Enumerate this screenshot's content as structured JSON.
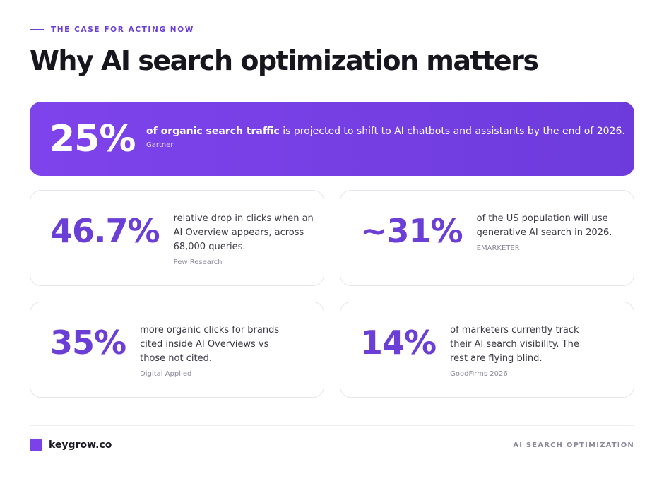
{
  "eyebrow": "THE CASE FOR ACTING NOW",
  "title": "Why AI search optimization matters",
  "hero": {
    "stat": "25%",
    "text_bold": "of organic search traffic",
    "text": " is projected to shift to AI chatbots and assistants by the end of 2026.",
    "source": "Gartner"
  },
  "cards": [
    {
      "stat": "46.7%",
      "text": "relative drop in clicks when an AI Overview appears, across 68,000 queries.",
      "source": "Pew Research"
    },
    {
      "stat": "~31%",
      "text": "of the US population will use generative AI search in 2026.",
      "source": "EMARKETER"
    },
    {
      "stat": "35%",
      "text": "more organic clicks for brands cited inside AI Overviews vs those not cited.",
      "source": "Digital Applied"
    },
    {
      "stat": "14%",
      "text": "of marketers currently track their AI search visibility. The rest are flying blind.",
      "source": "GoodFirms 2026"
    }
  ],
  "footer": {
    "brand": "keygrow.co",
    "tag": "AI SEARCH OPTIMIZATION"
  }
}
